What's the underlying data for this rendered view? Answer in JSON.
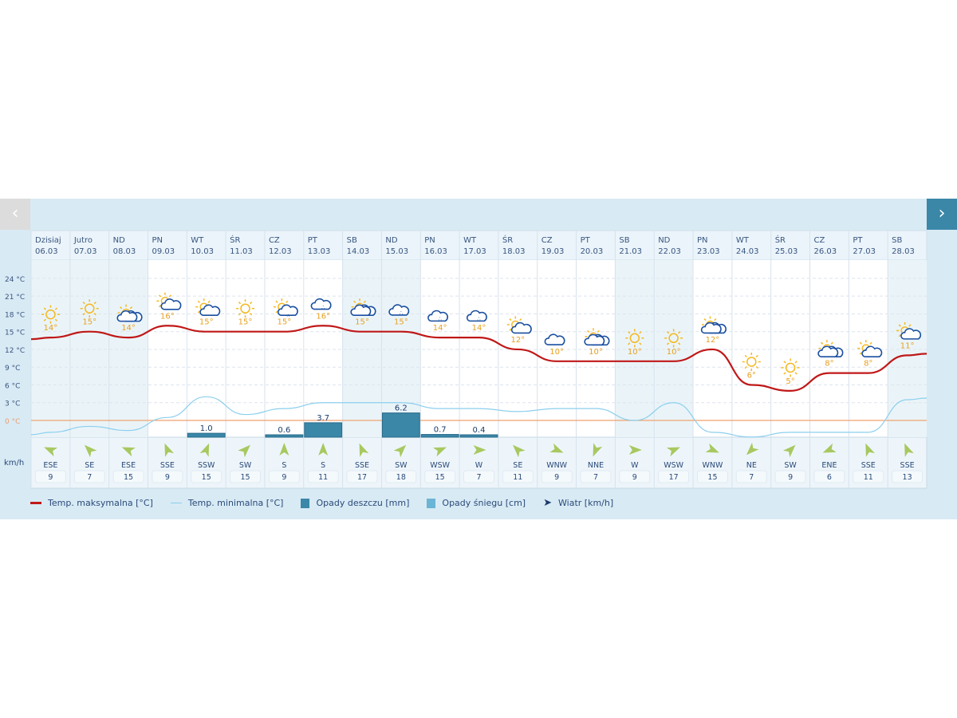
{
  "nav": {
    "prev": "‹",
    "next": "›"
  },
  "colors": {
    "max": "#c01818",
    "min": "#8ccfee",
    "rain": "#3a87a8",
    "snow": "#6ab4d6",
    "zero": "#f0a070",
    "wind": "#a8c860",
    "label": "#e8a020",
    "icon_cloud": "#1a4fa0",
    "sun": "#f5b820"
  },
  "chart_data": {
    "type": "line",
    "yticks": [
      "24 °C",
      "21 °C",
      "18 °C",
      "15 °C",
      "12 °C",
      "9 °C",
      "6 °C",
      "3 °C",
      "0 °C"
    ],
    "ytick_values": [
      24,
      21,
      18,
      15,
      12,
      9,
      6,
      3,
      0
    ],
    "ylim": [
      -2.8,
      27
    ],
    "days": [
      {
        "d": "Dzisiaj",
        "date": "06.03",
        "max": 14,
        "min": -2,
        "rain": null,
        "icon": "sun",
        "wd": "ESE",
        "ws": "9",
        "we": 1
      },
      {
        "d": "Jutro",
        "date": "07.03",
        "max": 15,
        "min": -1,
        "rain": null,
        "icon": "sun",
        "wd": "SE",
        "ws": "7",
        "we": 1
      },
      {
        "d": "ND",
        "date": "08.03",
        "max": 14,
        "min": -1.7,
        "rain": null,
        "icon": "sun-clouds",
        "wd": "ESE",
        "ws": "15",
        "we": 1
      },
      {
        "d": "PN",
        "date": "09.03",
        "max": 16,
        "min": 0.5,
        "rain": null,
        "icon": "sun-cloud",
        "wd": "SSE",
        "ws": "9",
        "we": 0
      },
      {
        "d": "WT",
        "date": "10.03",
        "max": 15,
        "min": 4,
        "rain": "1.0",
        "icon": "sun-cloud",
        "wd": "SSW",
        "ws": "15",
        "we": 0
      },
      {
        "d": "ŚR",
        "date": "11.03",
        "max": 15,
        "min": 1,
        "rain": null,
        "icon": "sun",
        "wd": "SW",
        "ws": "15",
        "we": 0
      },
      {
        "d": "CZ",
        "date": "12.03",
        "max": 15,
        "min": 2,
        "rain": "0.6",
        "icon": "sun-rain",
        "wd": "S",
        "ws": "9",
        "we": 0
      },
      {
        "d": "PT",
        "date": "13.03",
        "max": 16,
        "min": 3,
        "rain": "3.7",
        "icon": "rain",
        "wd": "S",
        "ws": "11",
        "we": 0
      },
      {
        "d": "SB",
        "date": "14.03",
        "max": 15,
        "min": 3,
        "rain": null,
        "icon": "sun-clouds",
        "wd": "SSE",
        "ws": "17",
        "we": 1
      },
      {
        "d": "ND",
        "date": "15.03",
        "max": 15,
        "min": 3,
        "rain": "6.2",
        "icon": "rain",
        "wd": "SW",
        "ws": "18",
        "we": 1
      },
      {
        "d": "PN",
        "date": "16.03",
        "max": 14,
        "min": 2,
        "rain": "0.7",
        "icon": "rain",
        "wd": "WSW",
        "ws": "15",
        "we": 0
      },
      {
        "d": "WT",
        "date": "17.03",
        "max": 14,
        "min": 2,
        "rain": "0.4",
        "icon": "rain",
        "wd": "W",
        "ws": "7",
        "we": 0
      },
      {
        "d": "ŚR",
        "date": "18.03",
        "max": 12,
        "min": 1.5,
        "rain": null,
        "icon": "sun-cloud",
        "wd": "SE",
        "ws": "11",
        "we": 0
      },
      {
        "d": "CZ",
        "date": "19.03",
        "max": 10,
        "min": 2,
        "rain": null,
        "icon": "cloud",
        "wd": "WNW",
        "ws": "9",
        "we": 0
      },
      {
        "d": "PT",
        "date": "20.03",
        "max": 10,
        "min": 2,
        "rain": null,
        "icon": "sun-clouds",
        "wd": "NNE",
        "ws": "7",
        "we": 0
      },
      {
        "d": "SB",
        "date": "21.03",
        "max": 10,
        "min": 0,
        "rain": null,
        "icon": "sun",
        "wd": "W",
        "ws": "9",
        "we": 1
      },
      {
        "d": "ND",
        "date": "22.03",
        "max": 10,
        "min": 3,
        "rain": null,
        "icon": "sun",
        "wd": "WSW",
        "ws": "17",
        "we": 1
      },
      {
        "d": "PN",
        "date": "23.03",
        "max": 12,
        "min": -2,
        "rain": null,
        "icon": "sun-clouds",
        "wd": "WNW",
        "ws": "15",
        "we": 0
      },
      {
        "d": "WT",
        "date": "24.03",
        "max": 6,
        "min": -2.8,
        "rain": null,
        "icon": "sun",
        "wd": "NE",
        "ws": "7",
        "we": 0
      },
      {
        "d": "ŚR",
        "date": "25.03",
        "max": 5,
        "min": -2,
        "rain": null,
        "icon": "sun",
        "wd": "SW",
        "ws": "9",
        "we": 0
      },
      {
        "d": "CZ",
        "date": "26.03",
        "max": 8,
        "min": -2,
        "rain": null,
        "icon": "sun-clouds",
        "wd": "ENE",
        "ws": "6",
        "we": 0
      },
      {
        "d": "PT",
        "date": "27.03",
        "max": 8,
        "min": -2,
        "rain": null,
        "icon": "sun-cloud",
        "wd": "SSE",
        "ws": "11",
        "we": 0
      },
      {
        "d": "SB",
        "date": "28.03",
        "max": 11,
        "min": 3.5,
        "rain": null,
        "icon": "sun-cloud",
        "wd": "SSE",
        "ws": "13",
        "we": 1
      }
    ],
    "wind_unit": "km/h",
    "legend": [
      "Temp. maksymalna [°C]",
      "Temp. minimalna [°C]",
      "Opady deszczu [mm]",
      "Opady śniegu [cm]",
      "Wiatr [km/h]"
    ]
  }
}
